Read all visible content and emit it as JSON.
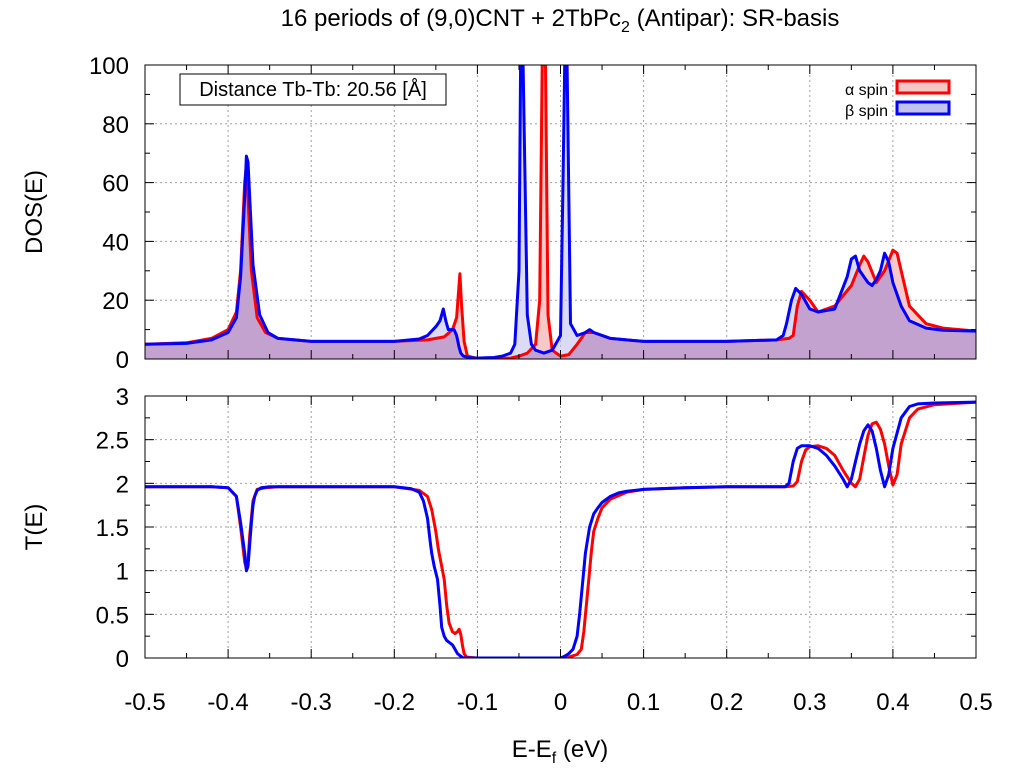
{
  "title": {
    "main": "16 periods of (9,0)CNT + 2TbPc",
    "sub": "2",
    "rest": " (Antipar): SR-basis"
  },
  "annotation": "Distance Tb-Tb: 20.56 [Å]",
  "colors": {
    "alpha": "#ff0000",
    "beta": "#0000ff",
    "alpha_fill": "#f5c6c6",
    "beta_fill": "#c3c3ef",
    "overlap_fill": "#c4a2d0",
    "grid": "#a0a0a0"
  },
  "chart_data": [
    {
      "type": "area",
      "ylabel": "DOS(E)",
      "xlim": [
        -0.5,
        0.5
      ],
      "ylim": [
        0,
        100
      ],
      "yticks": [
        "0",
        "20",
        "40",
        "60",
        "80",
        "100"
      ],
      "yticks_values": [
        0,
        20,
        40,
        60,
        80,
        100
      ],
      "grid": true,
      "legend": "top-right",
      "series": [
        {
          "name": "α spin",
          "x": [
            -0.5,
            -0.45,
            -0.42,
            -0.4,
            -0.39,
            -0.385,
            -0.38,
            -0.378,
            -0.376,
            -0.372,
            -0.365,
            -0.355,
            -0.34,
            -0.3,
            -0.2,
            -0.16,
            -0.14,
            -0.13,
            -0.125,
            -0.121,
            -0.119,
            -0.116,
            -0.112,
            -0.1,
            -0.08,
            -0.06,
            -0.05,
            -0.04,
            -0.03,
            -0.025,
            -0.022,
            -0.02,
            -0.018,
            -0.015,
            -0.01,
            0.0,
            0.01,
            0.02,
            0.03,
            0.04,
            0.06,
            0.1,
            0.2,
            0.26,
            0.275,
            0.28,
            0.285,
            0.29,
            0.3,
            0.31,
            0.33,
            0.35,
            0.36,
            0.365,
            0.37,
            0.38,
            0.39,
            0.4,
            0.405,
            0.41,
            0.42,
            0.44,
            0.46,
            0.5
          ],
          "y": [
            5,
            5.5,
            7,
            10,
            16,
            30,
            60,
            66,
            55,
            30,
            14,
            9,
            7,
            6,
            6,
            6.5,
            7.5,
            10,
            14,
            29,
            18,
            6,
            1,
            0.2,
            0.1,
            0.3,
            1,
            2,
            5,
            20,
            100,
            100,
            100,
            15,
            3,
            1,
            1.5,
            5,
            9,
            9,
            7,
            6,
            6,
            6.5,
            7,
            8,
            18,
            23,
            20,
            16,
            18,
            25,
            32,
            35,
            33,
            26,
            30,
            37,
            36,
            30,
            18,
            12,
            10.5,
            9.5
          ]
        },
        {
          "name": "β spin",
          "x": [
            -0.5,
            -0.45,
            -0.42,
            -0.4,
            -0.39,
            -0.385,
            -0.38,
            -0.378,
            -0.376,
            -0.374,
            -0.37,
            -0.362,
            -0.352,
            -0.34,
            -0.3,
            -0.2,
            -0.17,
            -0.16,
            -0.15,
            -0.145,
            -0.141,
            -0.138,
            -0.135,
            -0.128,
            -0.125,
            -0.122,
            -0.12,
            -0.117,
            -0.11,
            -0.1,
            -0.09,
            -0.08,
            -0.07,
            -0.06,
            -0.055,
            -0.05,
            -0.048,
            -0.045,
            -0.04,
            -0.035,
            -0.03,
            -0.02,
            -0.01,
            0.0,
            0.003,
            0.005,
            0.008,
            0.012,
            0.02,
            0.025,
            0.03,
            0.035,
            0.04,
            0.06,
            0.1,
            0.2,
            0.26,
            0.268,
            0.272,
            0.278,
            0.283,
            0.29,
            0.3,
            0.31,
            0.33,
            0.345,
            0.35,
            0.355,
            0.36,
            0.37,
            0.375,
            0.38,
            0.385,
            0.39,
            0.395,
            0.4,
            0.41,
            0.42,
            0.44,
            0.46,
            0.5
          ],
          "y": [
            5,
            5.3,
            6.5,
            9,
            14,
            28,
            55,
            69,
            67,
            55,
            32,
            15,
            9,
            7,
            6,
            6,
            6.8,
            8,
            11,
            13,
            17,
            13,
            10,
            10,
            8,
            4,
            2,
            1,
            0.5,
            0.3,
            0.4,
            0.5,
            1,
            2,
            5,
            30,
            100,
            100,
            15,
            5,
            3,
            2,
            3,
            8,
            60,
            100,
            100,
            12,
            8,
            8.5,
            9,
            10,
            9,
            7,
            6,
            6,
            6.5,
            8,
            12,
            20,
            24,
            22,
            17,
            16,
            17,
            28,
            34,
            35,
            30,
            26,
            25,
            27,
            30,
            36,
            33,
            26,
            18,
            13,
            10.5,
            9.8,
            9.5
          ]
        }
      ]
    },
    {
      "type": "line",
      "xlabel": "E-E",
      "xlabel_sub": "f",
      "xlabel_unit": " (eV)",
      "ylabel": "T(E)",
      "xlim": [
        -0.5,
        0.5
      ],
      "ylim": [
        0,
        3
      ],
      "xticks": [
        "-0.5",
        "-0.4",
        "-0.3",
        "-0.2",
        "-0.1",
        "0",
        "0.1",
        "0.2",
        "0.3",
        "0.4",
        "0.5"
      ],
      "xticks_values": [
        -0.5,
        -0.4,
        -0.3,
        -0.2,
        -0.1,
        0,
        0.1,
        0.2,
        0.3,
        0.4,
        0.5
      ],
      "yticks": [
        "0",
        "0.5",
        "1",
        "1.5",
        "2",
        "2.5",
        "3"
      ],
      "yticks_values": [
        0,
        0.5,
        1,
        1.5,
        2,
        2.5,
        3
      ],
      "grid": true,
      "series": [
        {
          "name": "α spin",
          "x": [
            -0.5,
            -0.42,
            -0.4,
            -0.39,
            -0.385,
            -0.38,
            -0.378,
            -0.376,
            -0.374,
            -0.37,
            -0.365,
            -0.355,
            -0.34,
            -0.3,
            -0.2,
            -0.17,
            -0.16,
            -0.155,
            -0.15,
            -0.147,
            -0.145,
            -0.143,
            -0.14,
            -0.137,
            -0.134,
            -0.13,
            -0.127,
            -0.124,
            -0.122,
            -0.12,
            -0.118,
            -0.116,
            -0.113,
            -0.1,
            -0.05,
            0.0,
            0.01,
            0.02,
            0.025,
            0.028,
            0.031,
            0.034,
            0.037,
            0.04,
            0.045,
            0.05,
            0.06,
            0.08,
            0.1,
            0.15,
            0.2,
            0.27,
            0.28,
            0.285,
            0.29,
            0.295,
            0.3,
            0.31,
            0.32,
            0.33,
            0.34,
            0.35,
            0.355,
            0.36,
            0.365,
            0.37,
            0.375,
            0.38,
            0.385,
            0.39,
            0.395,
            0.4,
            0.405,
            0.41,
            0.42,
            0.43,
            0.45,
            0.5
          ],
          "y": [
            1.96,
            1.96,
            1.95,
            1.85,
            1.5,
            1.1,
            1.02,
            1.1,
            1.4,
            1.8,
            1.93,
            1.95,
            1.96,
            1.96,
            1.96,
            1.92,
            1.85,
            1.7,
            1.45,
            1.25,
            1.15,
            1.05,
            0.9,
            0.6,
            0.4,
            0.3,
            0.28,
            0.3,
            0.33,
            0.27,
            0.15,
            0.05,
            0.01,
            0.0,
            0.0,
            0.0,
            0.01,
            0.04,
            0.1,
            0.3,
            0.6,
            0.9,
            1.2,
            1.45,
            1.6,
            1.72,
            1.82,
            1.9,
            1.93,
            1.95,
            1.96,
            1.96,
            1.97,
            2.02,
            2.25,
            2.38,
            2.42,
            2.43,
            2.4,
            2.32,
            2.15,
            2.0,
            1.96,
            2.05,
            2.3,
            2.55,
            2.68,
            2.7,
            2.62,
            2.45,
            2.2,
            1.98,
            2.1,
            2.45,
            2.75,
            2.85,
            2.9,
            2.93
          ]
        },
        {
          "name": "β spin",
          "x": [
            -0.5,
            -0.42,
            -0.4,
            -0.39,
            -0.385,
            -0.38,
            -0.378,
            -0.376,
            -0.374,
            -0.372,
            -0.37,
            -0.368,
            -0.365,
            -0.36,
            -0.35,
            -0.34,
            -0.3,
            -0.2,
            -0.18,
            -0.17,
            -0.165,
            -0.16,
            -0.157,
            -0.155,
            -0.152,
            -0.148,
            -0.145,
            -0.143,
            -0.14,
            -0.137,
            -0.134,
            -0.13,
            -0.127,
            -0.124,
            -0.12,
            -0.117,
            -0.11,
            -0.1,
            -0.05,
            0.0,
            0.005,
            0.01,
            0.015,
            0.02,
            0.023,
            0.026,
            0.03,
            0.035,
            0.04,
            0.045,
            0.05,
            0.06,
            0.07,
            0.08,
            0.1,
            0.15,
            0.2,
            0.27,
            0.275,
            0.28,
            0.285,
            0.29,
            0.3,
            0.31,
            0.32,
            0.33,
            0.34,
            0.345,
            0.35,
            0.355,
            0.36,
            0.365,
            0.37,
            0.375,
            0.38,
            0.385,
            0.39,
            0.395,
            0.4,
            0.41,
            0.42,
            0.43,
            0.45,
            0.5
          ],
          "y": [
            1.96,
            1.96,
            1.95,
            1.85,
            1.55,
            1.2,
            1.0,
            1.05,
            1.3,
            1.55,
            1.75,
            1.85,
            1.92,
            1.95,
            1.96,
            1.96,
            1.96,
            1.96,
            1.94,
            1.9,
            1.8,
            1.6,
            1.35,
            1.2,
            1.05,
            0.9,
            0.6,
            0.35,
            0.25,
            0.2,
            0.18,
            0.15,
            0.1,
            0.05,
            0.02,
            0.0,
            0.0,
            0.0,
            0.0,
            0.0,
            0.02,
            0.05,
            0.1,
            0.25,
            0.5,
            0.8,
            1.2,
            1.5,
            1.65,
            1.72,
            1.78,
            1.85,
            1.89,
            1.91,
            1.93,
            1.95,
            1.96,
            1.96,
            2.0,
            2.25,
            2.4,
            2.43,
            2.43,
            2.4,
            2.32,
            2.2,
            2.05,
            1.96,
            2.05,
            2.25,
            2.45,
            2.6,
            2.67,
            2.6,
            2.4,
            2.15,
            1.96,
            2.1,
            2.4,
            2.75,
            2.88,
            2.91,
            2.92,
            2.93
          ]
        }
      ]
    }
  ]
}
